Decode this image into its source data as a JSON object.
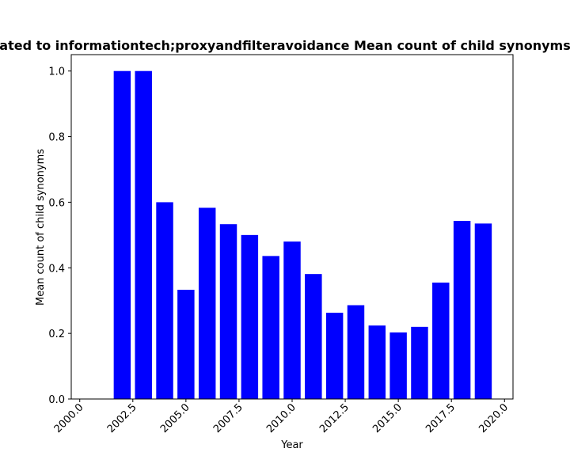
{
  "chart_data": {
    "type": "bar",
    "title": "ated to informationtech;proxyandfilteravoidance Mean count of child synonyms",
    "xlabel": "Year",
    "ylabel": "Mean count of child synonyms",
    "xlim": [
      1999.6,
      2020.4
    ],
    "ylim": [
      0.0,
      1.05
    ],
    "x_ticks": [
      2000.0,
      2002.5,
      2005.0,
      2007.5,
      2010.0,
      2012.5,
      2015.0,
      2017.5,
      2020.0
    ],
    "x_tick_labels": [
      "2000.0",
      "2002.5",
      "2005.0",
      "2007.5",
      "2010.0",
      "2012.5",
      "2015.0",
      "2017.5",
      "2020.0"
    ],
    "y_ticks": [
      0.0,
      0.2,
      0.4,
      0.6,
      0.8,
      1.0
    ],
    "y_tick_labels": [
      "0.0",
      "0.2",
      "0.4",
      "0.6",
      "0.8",
      "1.0"
    ],
    "grid": false,
    "bar_color": "#0000ff",
    "bar_width": 0.8,
    "x": [
      2002,
      2003,
      2004,
      2005,
      2006,
      2007,
      2008,
      2009,
      2010,
      2011,
      2012,
      2013,
      2014,
      2015,
      2016,
      2017,
      2018,
      2019
    ],
    "values": [
      1.0,
      1.0,
      0.6,
      0.333,
      0.583,
      0.533,
      0.5,
      0.436,
      0.48,
      0.381,
      0.263,
      0.286,
      0.224,
      0.203,
      0.22,
      0.355,
      0.543,
      0.535
    ]
  }
}
